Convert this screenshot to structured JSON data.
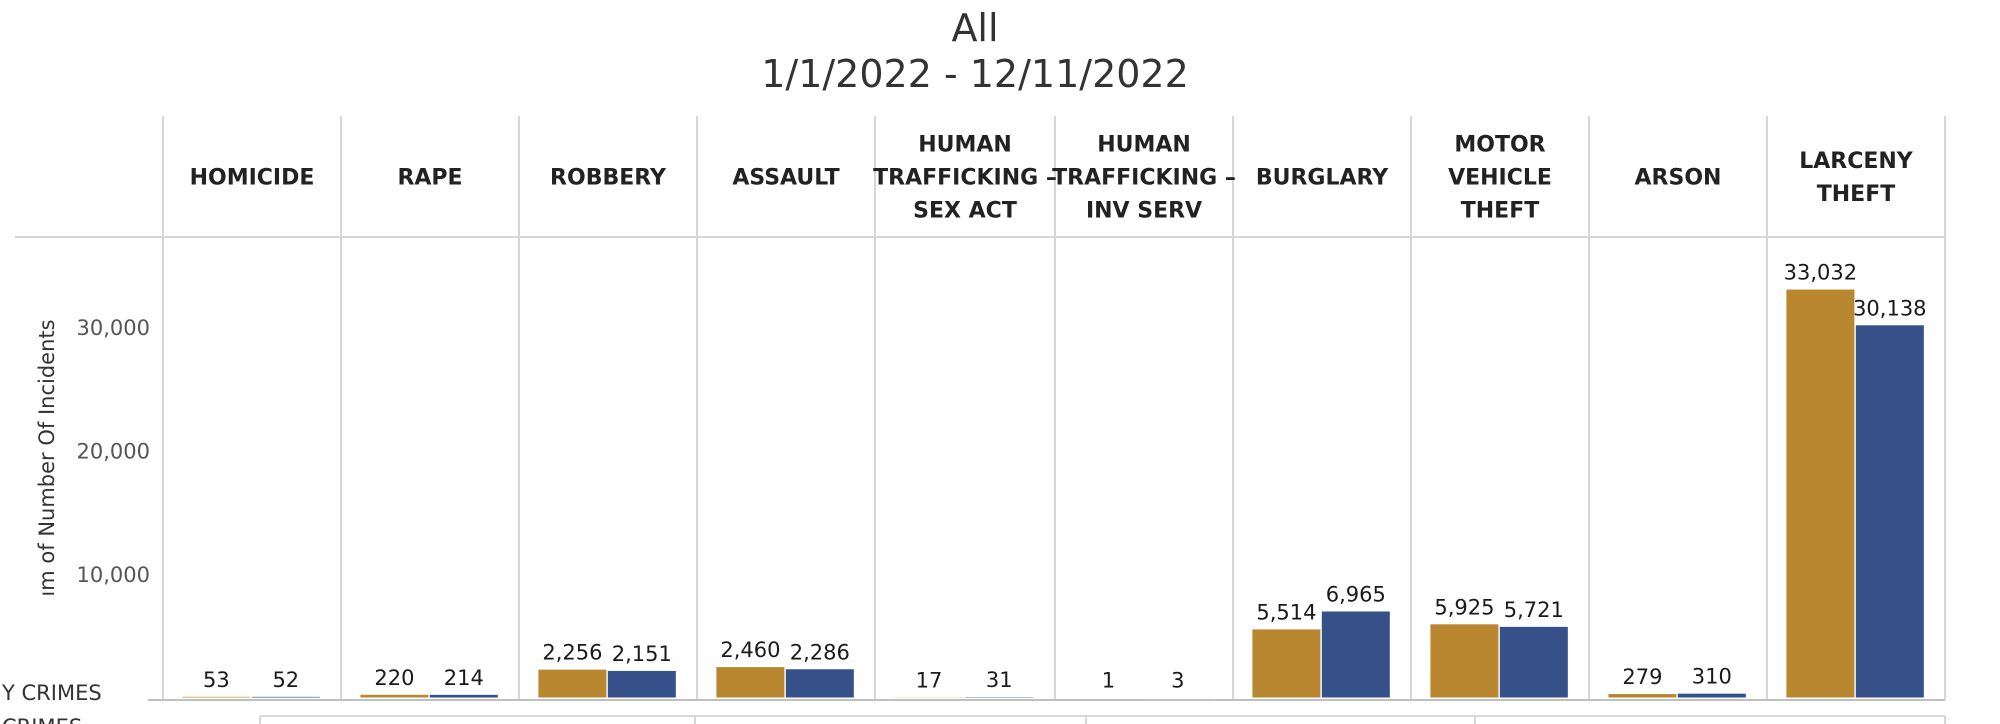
{
  "title": {
    "line1": "All",
    "line2": "1/1/2022 - 12/11/2022"
  },
  "edge_text": {
    "row1": "Y CRIMES",
    "row2": "CRIMES"
  },
  "colors": {
    "series_a": "#B88730",
    "series_b": "#365089",
    "grid": "#d6d6d6",
    "axis": "#bfbfbf"
  },
  "chart_data": {
    "type": "bar",
    "title": "All",
    "subtitle": "1/1/2022 - 12/11/2022",
    "ylabel": "ım of Number Of Incidents",
    "xlabel": "",
    "ylim": [
      0,
      37500
    ],
    "yticks": [
      10000,
      20000,
      30000
    ],
    "ytick_labels": [
      "10,000",
      "20,000",
      "30,000"
    ],
    "grid": false,
    "legend": "none",
    "categories": [
      [
        "HOMICIDE"
      ],
      [
        "RAPE"
      ],
      [
        "ROBBERY"
      ],
      [
        "ASSAULT"
      ],
      [
        "HUMAN",
        "TRAFFICKING –",
        "SEX ACT"
      ],
      [
        "HUMAN",
        "TRAFFICKING –",
        "INV SERV"
      ],
      [
        "BURGLARY"
      ],
      [
        "MOTOR",
        "VEHICLE",
        "THEFT"
      ],
      [
        "ARSON"
      ],
      [
        "LARCENY",
        "THEFT"
      ]
    ],
    "series": [
      {
        "color": "#B88730",
        "values": [
          53,
          220,
          2256,
          2460,
          17,
          1,
          5514,
          5925,
          279,
          33032
        ],
        "labels": [
          "53",
          "220",
          "2,256",
          "2,460",
          "17",
          "1",
          "5,514",
          "5,925",
          "279",
          "33,032"
        ]
      },
      {
        "color": "#365089",
        "values": [
          52,
          214,
          2151,
          2286,
          31,
          3,
          6965,
          5721,
          310,
          30138
        ],
        "labels": [
          "52",
          "214",
          "2,151",
          "2,286",
          "31",
          "3",
          "6,965",
          "5,721",
          "310",
          "30,138"
        ]
      }
    ]
  }
}
